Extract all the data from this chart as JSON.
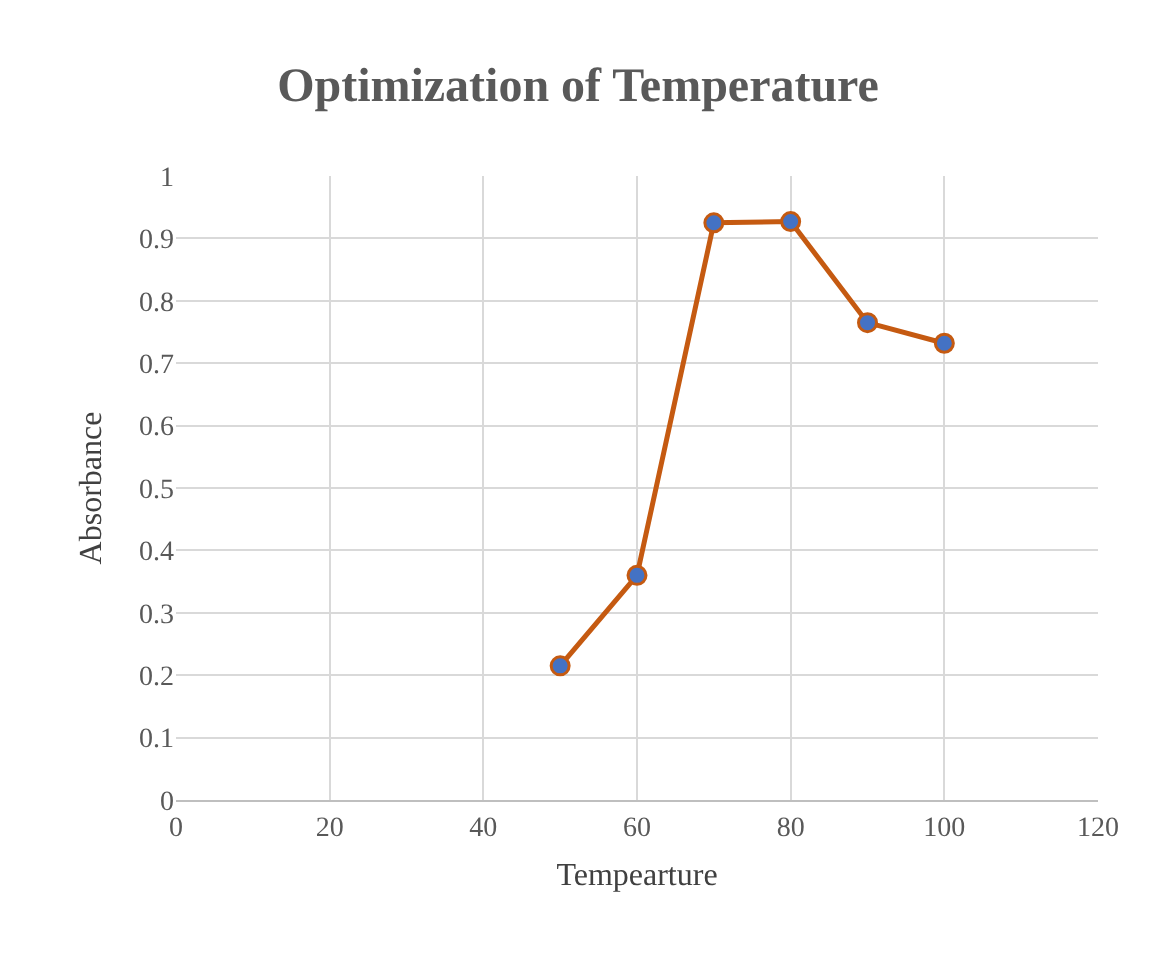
{
  "chart_data": {
    "type": "line",
    "title": "Optimization of Temperature",
    "xlabel": "Tempearture",
    "ylabel": "Absorbance",
    "x": [
      50,
      60,
      70,
      80,
      90,
      100
    ],
    "series": [
      {
        "color": "#c55a11",
        "colors": [
          "#4472c4",
          "#4472c4",
          "#4472c4",
          "#4472c4",
          "#4472c4",
          "#4472c4"
        ],
        "values": [
          0.215,
          0.36,
          0.925,
          0.927,
          0.765,
          0.732
        ]
      }
    ],
    "xlim": [
      0,
      120
    ],
    "xticks": [
      0,
      20,
      40,
      60,
      80,
      100,
      120
    ],
    "ylim": [
      0,
      1
    ],
    "yticks": [
      0,
      0.1,
      0.2,
      0.3,
      0.4,
      0.5,
      0.6,
      0.7,
      0.8,
      0.9,
      1
    ],
    "grid": true,
    "marker": "circle",
    "line_style": "solid"
  }
}
